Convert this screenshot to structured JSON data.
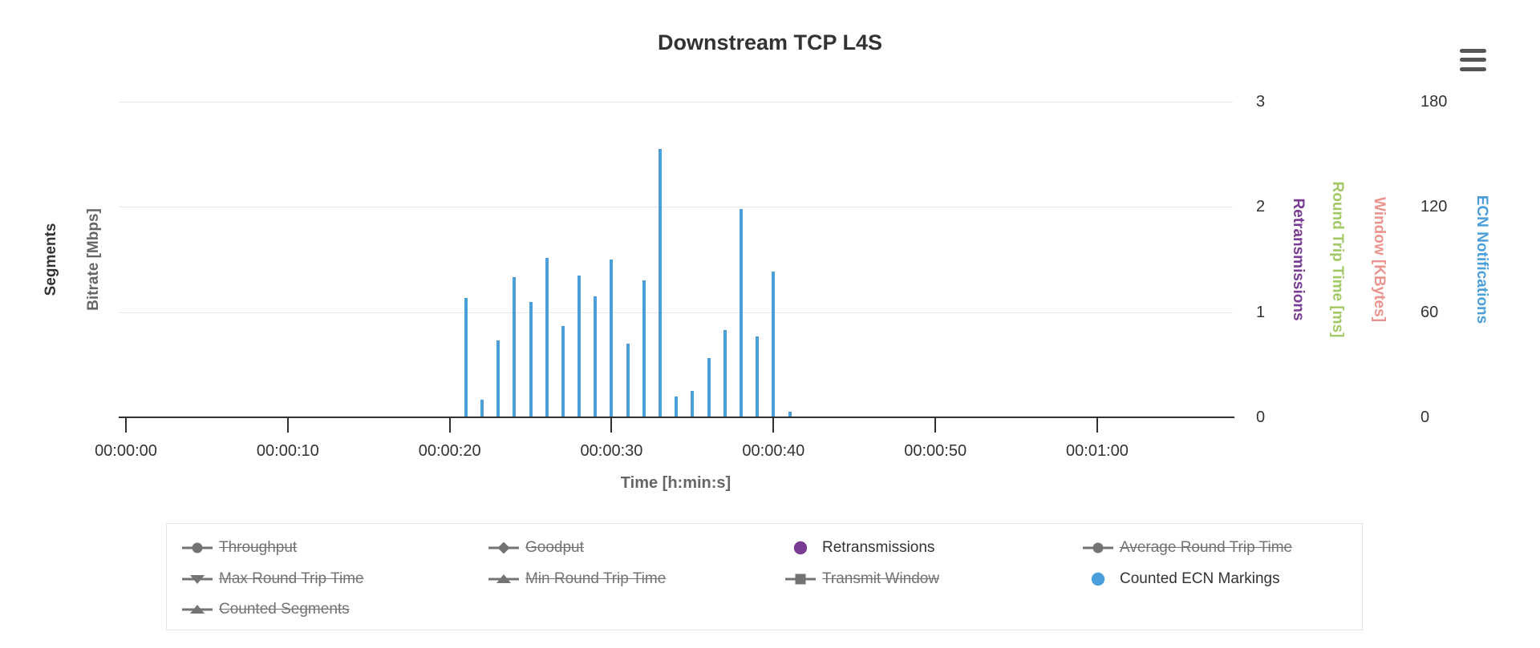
{
  "header": {
    "title": "Downstream TCP L4S"
  },
  "menu": {
    "icon": "hamburger"
  },
  "x_axis": {
    "title": "Time [h:min:s]",
    "tick_labels": [
      "00:00:00",
      "00:00:10",
      "00:00:20",
      "00:00:30",
      "00:00:40",
      "00:00:50",
      "00:01:00"
    ],
    "tick_seconds": [
      0,
      10,
      20,
      30,
      40,
      50,
      60
    ]
  },
  "y_axes": {
    "left_titles": [
      {
        "title": "Segments",
        "color": "#333333"
      },
      {
        "title": "Bitrate [Mbps]",
        "color": "#666666"
      }
    ],
    "right_inner": {
      "tick_labels": [
        "3",
        "2",
        "1",
        "0"
      ],
      "tick_values": [
        3,
        2,
        1,
        0
      ]
    },
    "right_outer": {
      "tick_labels": [
        "180",
        "120",
        "60",
        "0"
      ],
      "tick_values": [
        180,
        120,
        60,
        0
      ]
    },
    "right_titles": [
      {
        "title": "Retransmissions",
        "color": "#7A3B95"
      },
      {
        "title": "Round Trip Time [ms]",
        "color": "#A2C966"
      },
      {
        "title": "Window [KBytes]",
        "color": "#EB938F"
      },
      {
        "title": "ECN Notifications",
        "color": "#4A9EDA"
      }
    ]
  },
  "chart_data": {
    "type": "bar",
    "title": "Downstream TCP L4S",
    "xlabel": "Time [h:min:s]",
    "x_tick_labels": [
      "00:00:00",
      "00:00:10",
      "00:00:20",
      "00:00:30",
      "00:00:40",
      "00:00:50",
      "00:01:00"
    ],
    "grid": "horizontal-only",
    "retransmissions_axis_range": [
      0,
      3
    ],
    "ecn_axis_range": [
      0,
      180
    ],
    "series": [
      {
        "name": "Counted ECN Markings",
        "type": "column",
        "color": "#4A9EDA",
        "y_axis": "ECN Notifications",
        "visible": true,
        "x_seconds": [
          21,
          22,
          23,
          24,
          25,
          26,
          27,
          28,
          29,
          30,
          31,
          32,
          33,
          34,
          35,
          36,
          37,
          38,
          39,
          40,
          41
        ],
        "x_labels": [
          "00:00:21",
          "00:00:22",
          "00:00:23",
          "00:00:24",
          "00:00:25",
          "00:00:26",
          "00:00:27",
          "00:00:28",
          "00:00:29",
          "00:00:30",
          "00:00:31",
          "00:00:32",
          "00:00:33",
          "00:00:34",
          "00:00:35",
          "00:00:36",
          "00:00:37",
          "00:00:38",
          "00:00:39",
          "00:00:40",
          "00:00:41"
        ],
        "values": [
          68,
          10,
          44,
          80,
          66,
          91,
          52,
          81,
          69,
          90,
          42,
          78,
          153,
          12,
          15,
          34,
          50,
          119,
          46,
          83,
          3
        ]
      },
      {
        "name": "Retransmissions",
        "type": "column",
        "color": "#7A3B95",
        "y_axis": "Retransmissions",
        "visible": true,
        "values": []
      },
      {
        "name": "Throughput",
        "visible": false
      },
      {
        "name": "Goodput",
        "visible": false
      },
      {
        "name": "Average Round Trip Time",
        "visible": false
      },
      {
        "name": "Max Round Trip Time",
        "visible": false
      },
      {
        "name": "Min Round Trip Time",
        "visible": false
      },
      {
        "name": "Transmit Window",
        "visible": false
      },
      {
        "name": "Counted Segments",
        "visible": false
      }
    ]
  },
  "legend": {
    "items": [
      {
        "label": "Throughput",
        "marker": "line-circle",
        "color": "#737373",
        "enabled": false,
        "col": 0,
        "row": 0
      },
      {
        "label": "Goodput",
        "marker": "line-diamond",
        "color": "#737373",
        "enabled": false,
        "col": 1,
        "row": 0
      },
      {
        "label": "Retransmissions",
        "marker": "dot",
        "color": "#7A3B95",
        "enabled": true,
        "col": 2,
        "row": 0
      },
      {
        "label": "Average Round Trip Time",
        "marker": "line-circle",
        "color": "#737373",
        "enabled": false,
        "col": 3,
        "row": 0
      },
      {
        "label": "Max Round Trip Time",
        "marker": "line-triangle-down",
        "color": "#737373",
        "enabled": false,
        "col": 0,
        "row": 1
      },
      {
        "label": "Min Round Trip Time",
        "marker": "line-triangle-up",
        "color": "#737373",
        "enabled": false,
        "col": 1,
        "row": 1
      },
      {
        "label": "Transmit Window",
        "marker": "line-square",
        "color": "#737373",
        "enabled": false,
        "col": 2,
        "row": 1
      },
      {
        "label": "Counted ECN Markings",
        "marker": "dot",
        "color": "#4A9EDA",
        "enabled": true,
        "col": 3,
        "row": 1
      },
      {
        "label": "Counted Segments",
        "marker": "line-triangle-up",
        "color": "#737373",
        "enabled": false,
        "col": 0,
        "row": 2
      }
    ]
  }
}
